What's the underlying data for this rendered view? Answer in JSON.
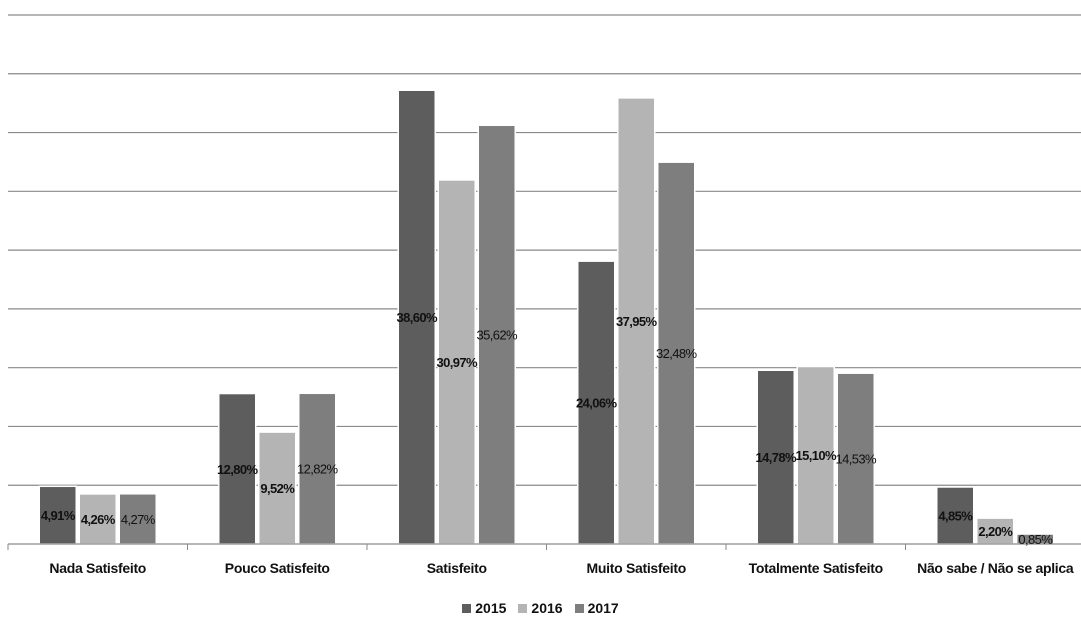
{
  "chart_data": {
    "type": "bar",
    "categories": [
      "Nada Satisfeito",
      "Pouco Satisfeito",
      "Satisfeito",
      "Muito Satisfeito",
      "Totalmente Satisfeito",
      "Não sabe / Não se aplica"
    ],
    "series": [
      {
        "name": "2015",
        "values": [
          4.91,
          12.8,
          38.6,
          24.06,
          14.78,
          4.85
        ],
        "labels": [
          "4,91%",
          "12,80%",
          "38,60%",
          "24,06%",
          "14,78%",
          "4,85%"
        ],
        "color": "#5d5d5d",
        "label_bold": true
      },
      {
        "name": "2016",
        "values": [
          4.26,
          9.52,
          30.97,
          37.95,
          15.1,
          2.2
        ],
        "labels": [
          "4,26%",
          "9,52%",
          "30,97%",
          "37,95%",
          "15,10%",
          "2,20%"
        ],
        "color": "#b4b4b4",
        "label_bold": true
      },
      {
        "name": "2017",
        "values": [
          4.27,
          12.82,
          35.62,
          32.48,
          14.53,
          0.85
        ],
        "labels": [
          "4,27%",
          "12,82%",
          "35,62%",
          "32,48%",
          "14,53%",
          "0,85%"
        ],
        "color": "#7e7e7e",
        "label_bold": false
      }
    ],
    "ylim": [
      0,
      45
    ],
    "grid": true,
    "legend_position": "bottom"
  }
}
